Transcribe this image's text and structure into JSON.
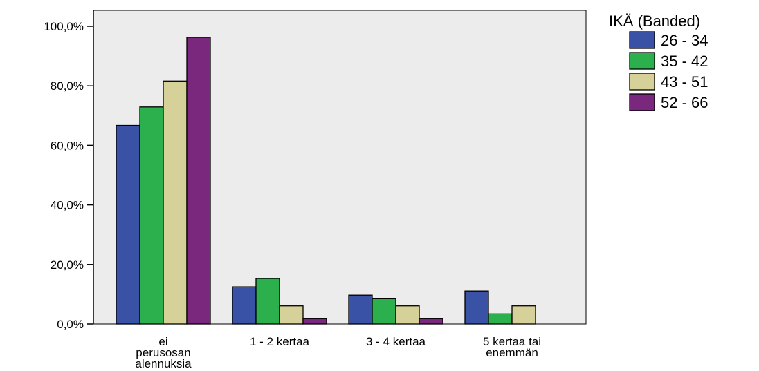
{
  "chart_data": {
    "type": "bar",
    "categories": [
      [
        "ei",
        "perusosan",
        "alennuksia"
      ],
      [
        "1 - 2 kertaa"
      ],
      [
        "3 - 4 kertaa"
      ],
      [
        "5 kertaa tai",
        "enemmän"
      ]
    ],
    "legend_title": "IKÄ (Banded)",
    "legend_position": "top-right",
    "ylim": [
      0,
      100
    ],
    "yticks": [
      "0,0%",
      "20,0%",
      "40,0%",
      "60,0%",
      "80,0%",
      "100,0%"
    ],
    "ytick_values": [
      0,
      20,
      40,
      60,
      80,
      100
    ],
    "grid": false,
    "series": [
      {
        "name": "26 - 34",
        "color": "#3a52a6",
        "values": [
          66.7,
          12.5,
          9.7,
          11.1
        ]
      },
      {
        "name": "35 - 42",
        "color": "#2cb04e",
        "values": [
          72.9,
          15.3,
          8.5,
          3.4
        ]
      },
      {
        "name": "43 - 51",
        "color": "#d6d199",
        "values": [
          81.6,
          6.1,
          6.1,
          6.1
        ]
      },
      {
        "name": "52 - 66",
        "color": "#7a287d",
        "values": [
          96.3,
          1.8,
          1.8,
          0.0
        ]
      }
    ]
  }
}
